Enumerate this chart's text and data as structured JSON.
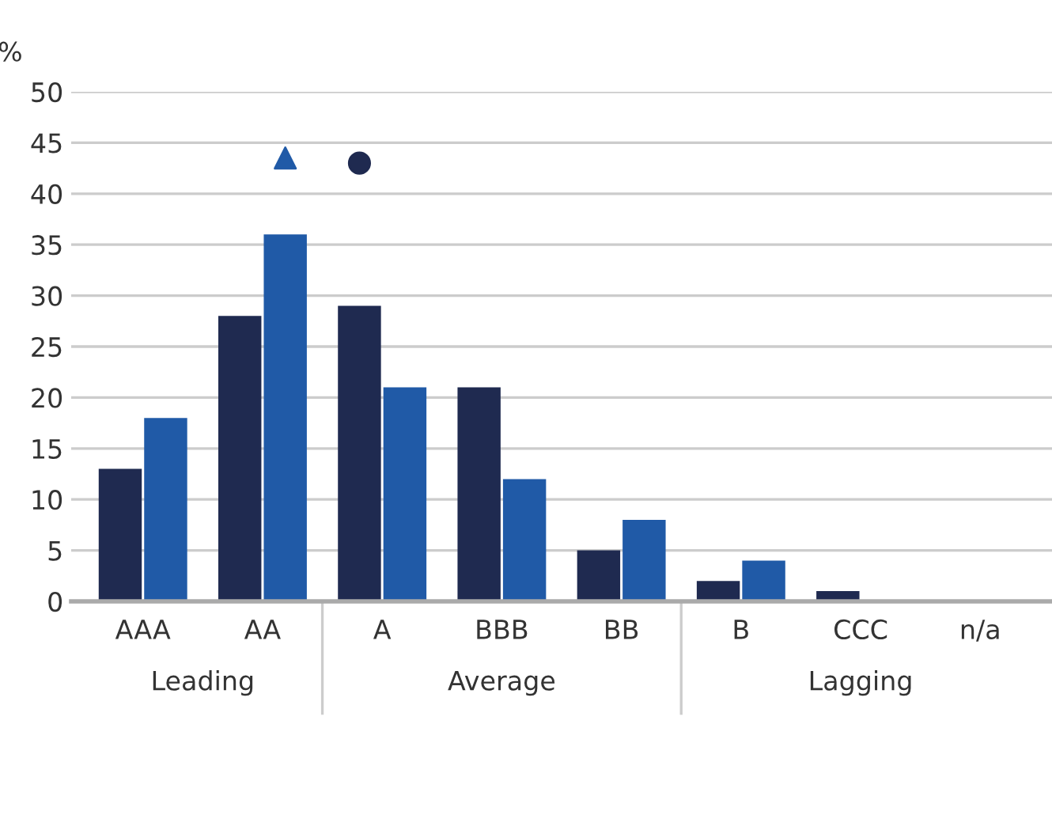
{
  "chart_data": {
    "type": "bar",
    "ylabel": "%",
    "categories": [
      "AAA",
      "AA",
      "A",
      "BBB",
      "BB",
      "B",
      "CCC",
      "n/a"
    ],
    "series": [
      {
        "color": "#1f2a50",
        "values": [
          13,
          28,
          29,
          21,
          5,
          2,
          1,
          0
        ]
      },
      {
        "color": "#205aa7",
        "values": [
          18,
          36,
          21,
          12,
          8,
          4,
          0,
          0
        ]
      },
      {
        "type": "scatter",
        "marker": "triangle",
        "color": "#205aa7",
        "x": [
          "AA"
        ],
        "values": [
          43.5
        ]
      },
      {
        "type": "scatter",
        "marker": "circle",
        "color": "#1f2a50",
        "x": [
          "A"
        ],
        "values": [
          43
        ]
      }
    ],
    "annotations": [
      "Leading",
      "Average",
      "Lagging"
    ],
    "ylim": [
      0,
      50
    ],
    "yticks": [
      0,
      5,
      10,
      15,
      20,
      25,
      30,
      35,
      40,
      45,
      50
    ],
    "grid": "y",
    "legend": false
  }
}
